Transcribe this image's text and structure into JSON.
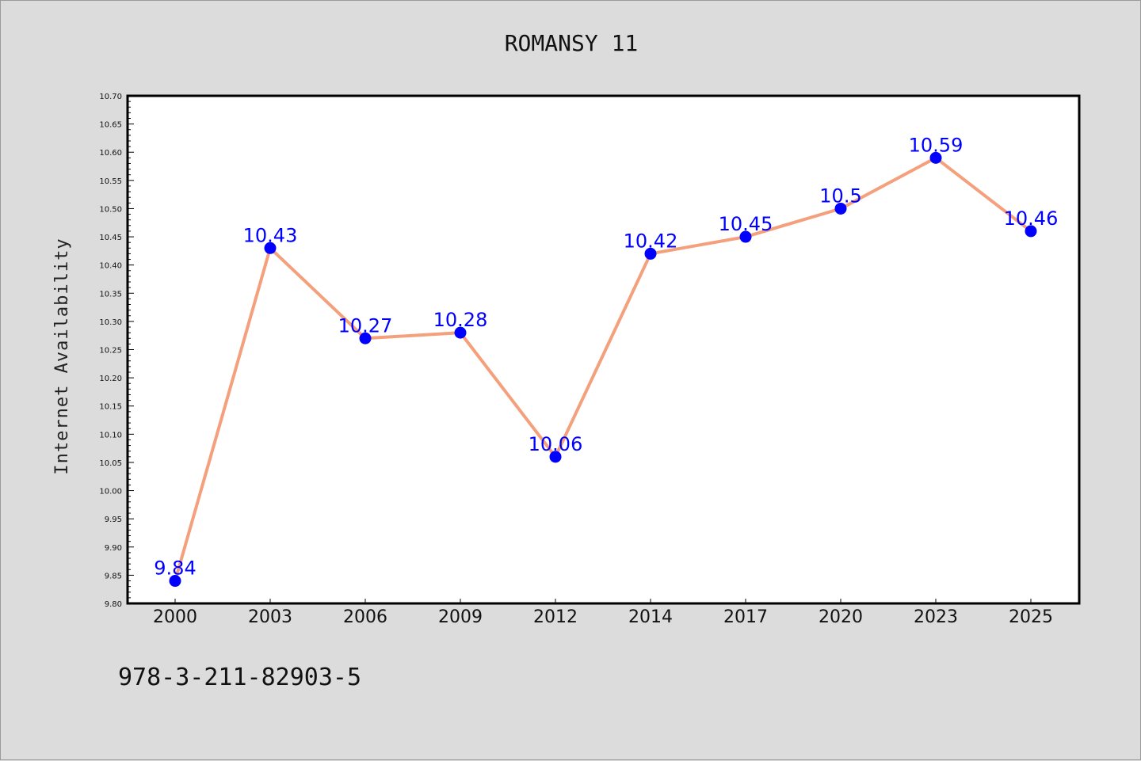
{
  "chart_data": {
    "type": "line",
    "title": "ROMANSY 11",
    "xlabel": "",
    "ylabel": "Internet Availability",
    "categories": [
      "2000",
      "2003",
      "2006",
      "2009",
      "2012",
      "2014",
      "2017",
      "2020",
      "2023",
      "2025"
    ],
    "series": [
      {
        "values": [
          9.84,
          10.43,
          10.27,
          10.28,
          10.06,
          10.42,
          10.45,
          10.5,
          10.59,
          10.46
        ],
        "data_labels": [
          "9.84",
          "10.43",
          "10.27",
          "10.28",
          "10.06",
          "10.42",
          "10.45",
          "10.5",
          "10.59",
          "10.46"
        ],
        "line_color": "#f4a07c",
        "marker_color": "#0000ff"
      }
    ],
    "ylim": [
      9.8,
      10.7
    ],
    "yticks": [
      "9.80",
      "9.85",
      "9.90",
      "9.95",
      "10.00",
      "10.05",
      "10.10",
      "10.15",
      "10.20",
      "10.25",
      "10.30",
      "10.35",
      "10.40",
      "10.45",
      "10.50",
      "10.55",
      "10.60",
      "10.65",
      "10.70"
    ],
    "grid": false,
    "legend": "none",
    "label_color": "#0000ff"
  },
  "footer_text": "978-3-211-82903-5",
  "colors": {
    "figure_background": "#dcdcdc",
    "plot_background": "#ffffff"
  }
}
